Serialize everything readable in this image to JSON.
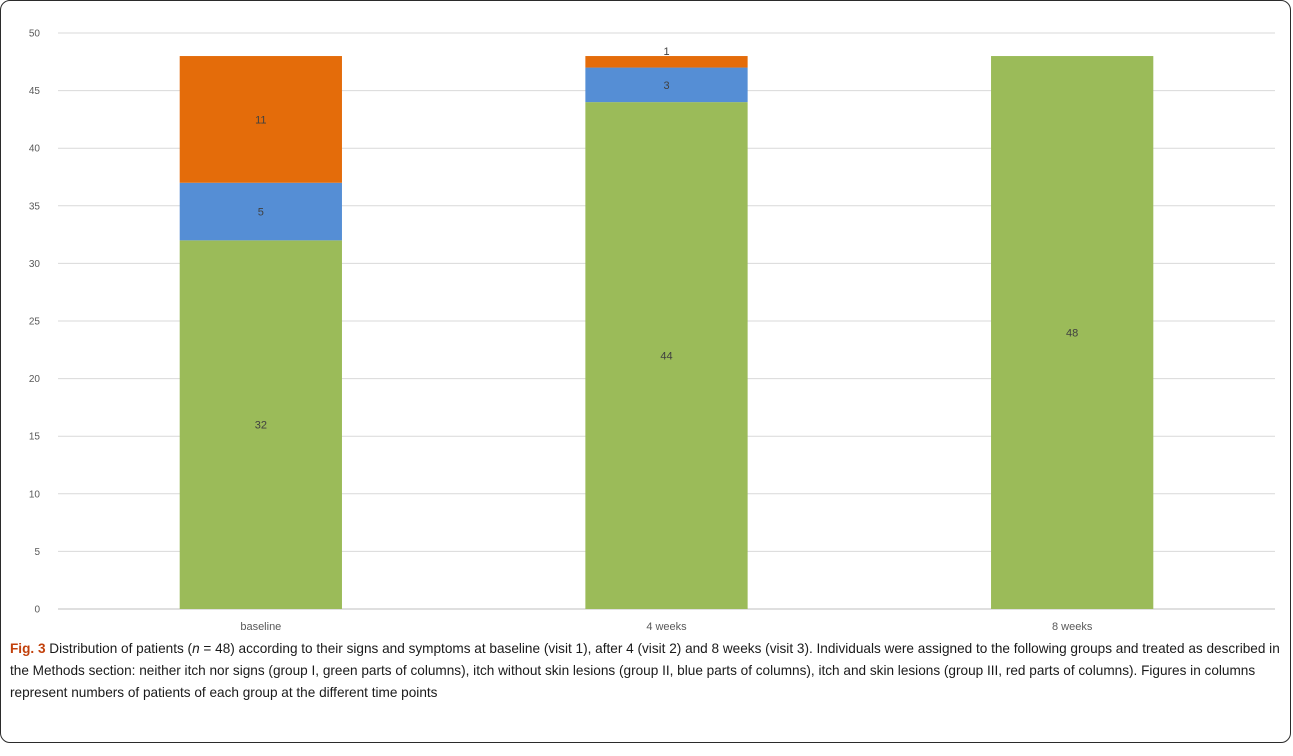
{
  "chart_data": {
    "type": "bar",
    "stacked": true,
    "categories": [
      "baseline",
      "4 weeks",
      "8 weeks"
    ],
    "series": [
      {
        "color": "#9bbb59",
        "values": [
          32,
          44,
          48
        ]
      },
      {
        "color": "#558ed5",
        "values": [
          5,
          3,
          0
        ]
      },
      {
        "color": "#e46c0a",
        "values": [
          11,
          1,
          0
        ]
      }
    ],
    "ylim": [
      0,
      50
    ],
    "yticks": [
      0,
      5,
      10,
      15,
      20,
      25,
      30,
      35,
      40,
      45,
      50
    ],
    "grid": true,
    "data_labels": true
  },
  "caption": {
    "label": "Fig. 3",
    "text_before_n": " Distribution of patients (",
    "n_symbol": "n",
    "text_after_n": " = 48) according to their signs and symptoms at baseline (visit 1), after 4 (visit 2) and 8 weeks (visit 3). Individuals were assigned to the following groups and treated as described in the Methods section: neither itch nor signs (group I, green parts of columns), itch without skin lesions (group II, blue parts of columns), itch and skin lesions (group III, red parts of columns). Figures in columns represent numbers of patients of each group at the different time points"
  }
}
